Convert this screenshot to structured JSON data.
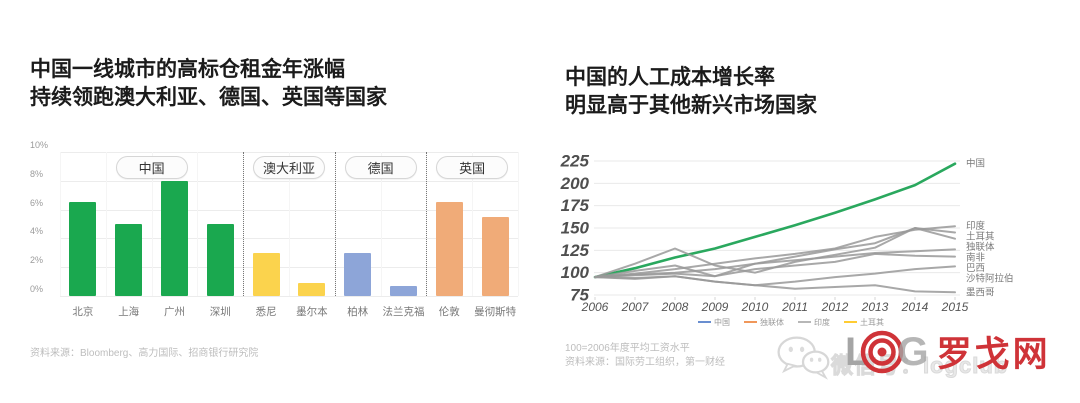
{
  "left_chart": {
    "title_line1": "中国一线城市的高标仓租金年涨幅",
    "title_line2": "持续领跑澳大利亚、德国、英国等国家",
    "source": "资料来源：Bloomberg、高力国际、招商银行研究院"
  },
  "right_chart": {
    "title_line1": "中国的人工成本增长率",
    "title_line2": "明显高于其他新兴市场国家",
    "footnote": "100=2006年度平均工资水平",
    "source": "资料来源：国际劳工组织，第一财经"
  },
  "watermark": {
    "wechat_text": "微信号：logclub",
    "logo_letter_l": "L",
    "logo_letter_g": "G",
    "logo_cn": "罗戈网",
    "logo_red": "#cf3338",
    "logo_gray": "#a5a5a5"
  },
  "chart_data": [
    {
      "type": "bar",
      "title": "中国一线城市的高标仓租金年涨幅 持续领跑澳大利亚、德国、英国等国家",
      "ylim": [
        0,
        10
      ],
      "yticks": [
        0,
        2,
        4,
        6,
        8,
        10
      ],
      "ytick_suffix": "%",
      "grid": true,
      "groups": [
        {
          "label": "中国",
          "color": "#1aa84f",
          "categories": [
            "北京",
            "上海",
            "广州",
            "深圳"
          ],
          "values": [
            6.5,
            5.0,
            8.0,
            5.0
          ]
        },
        {
          "label": "澳大利亚",
          "color": "#fbd34d",
          "categories": [
            "悉尼",
            "墨尔本"
          ],
          "values": [
            3.0,
            0.9
          ]
        },
        {
          "label": "德国",
          "color": "#8da5d8",
          "categories": [
            "柏林",
            "法兰克福"
          ],
          "values": [
            3.0,
            0.7
          ]
        },
        {
          "label": "英国",
          "color": "#f0ab78",
          "categories": [
            "伦敦",
            "曼彻斯特"
          ],
          "values": [
            6.5,
            5.5
          ]
        }
      ]
    },
    {
      "type": "line",
      "title": "中国的人工成本增长率 明显高于其他新兴市场国家",
      "x": [
        2006,
        2007,
        2008,
        2009,
        2010,
        2011,
        2012,
        2013,
        2014,
        2015
      ],
      "ylim": [
        75,
        225
      ],
      "yticks": [
        75,
        100,
        125,
        150,
        175,
        200,
        225
      ],
      "grid": true,
      "legend_position": "bottom",
      "series": [
        {
          "name": "中国",
          "color": "#2aa85e",
          "width": 2.6,
          "values": [
            95,
            105,
            117,
            127,
            140,
            153,
            167,
            182,
            198,
            222
          ]
        },
        {
          "name": "印度",
          "color": "#999999",
          "width": 2,
          "values": [
            95,
            99,
            104,
            110,
            116,
            121,
            127,
            140,
            148,
            152
          ]
        },
        {
          "name": "土耳其",
          "color": "#999999",
          "width": 2,
          "values": [
            95,
            102,
            108,
            96,
            110,
            118,
            126,
            133,
            150,
            145
          ]
        },
        {
          "name": "独联体",
          "color": "#999999",
          "width": 2,
          "values": [
            95,
            110,
            127,
            108,
            100,
            112,
            120,
            128,
            150,
            138
          ]
        },
        {
          "name": "南非",
          "color": "#999999",
          "width": 2,
          "values": [
            95,
            98,
            100,
            104,
            110,
            114,
            118,
            122,
            124,
            126
          ]
        },
        {
          "name": "巴西",
          "color": "#999999",
          "width": 2,
          "values": [
            95,
            97,
            99,
            96,
            104,
            108,
            112,
            121,
            119,
            118
          ]
        },
        {
          "name": "沙特阿拉伯",
          "color": "#999999",
          "width": 2,
          "values": [
            95,
            94,
            96,
            90,
            86,
            90,
            95,
            99,
            104,
            107
          ]
        },
        {
          "name": "墨西哥",
          "color": "#999999",
          "width": 2,
          "values": [
            95,
            93,
            96,
            90,
            86,
            82,
            84,
            86,
            79,
            78
          ]
        }
      ],
      "legend": [
        {
          "label": "中国",
          "color": "#4472c4"
        },
        {
          "label": "独联体",
          "color": "#ed7d31"
        },
        {
          "label": "印度",
          "color": "#a5a5a5"
        },
        {
          "label": "土耳其",
          "color": "#ffc000"
        }
      ]
    }
  ]
}
